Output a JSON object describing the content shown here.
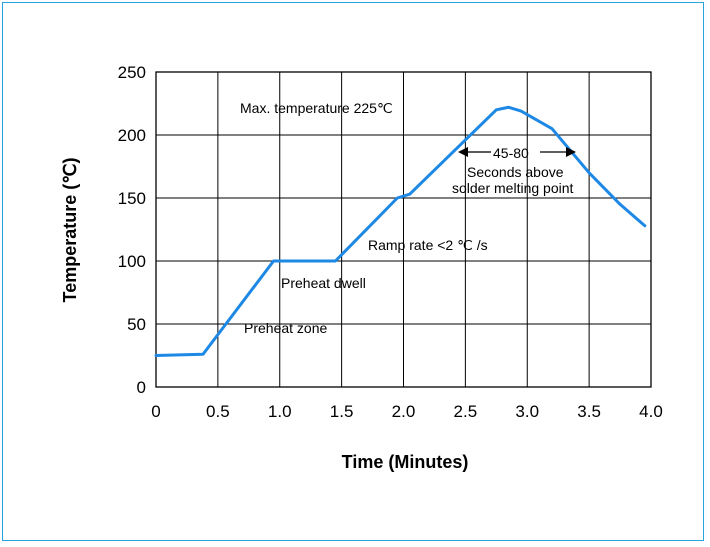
{
  "chart_data": {
    "type": "line",
    "xlabel": "Time (Minutes)",
    "ylabel": "Temperature (℃)",
    "xlim": [
      0,
      4.0
    ],
    "ylim": [
      0,
      250
    ],
    "x_ticks": [
      "0",
      "0.5",
      "1.0",
      "1.5",
      "2.0",
      "2.5",
      "3.0",
      "3.5",
      "4.0"
    ],
    "y_ticks": [
      "0",
      "50",
      "100",
      "150",
      "200",
      "250"
    ],
    "grid": true,
    "line_color": "#1e88e5",
    "series": [
      {
        "x": [
          0,
          0.38,
          0.95,
          1.45,
          1.95,
          2.05,
          2.75,
          2.85,
          2.95,
          3.2,
          3.5,
          3.75,
          3.95
        ],
        "y": [
          25,
          26,
          100,
          100,
          150,
          153,
          220,
          222,
          219,
          205,
          170,
          145,
          128
        ]
      }
    ],
    "annotations": {
      "max_temp": "Max. temperature 225℃",
      "range": "45-80",
      "seconds_above": "Seconds above",
      "melting": "solder melting point",
      "ramp_rate": "Ramp rate <2  ℃  /s",
      "preheat_dwell": "Preheat dwell",
      "preheat_zone": "Preheat zone"
    }
  }
}
